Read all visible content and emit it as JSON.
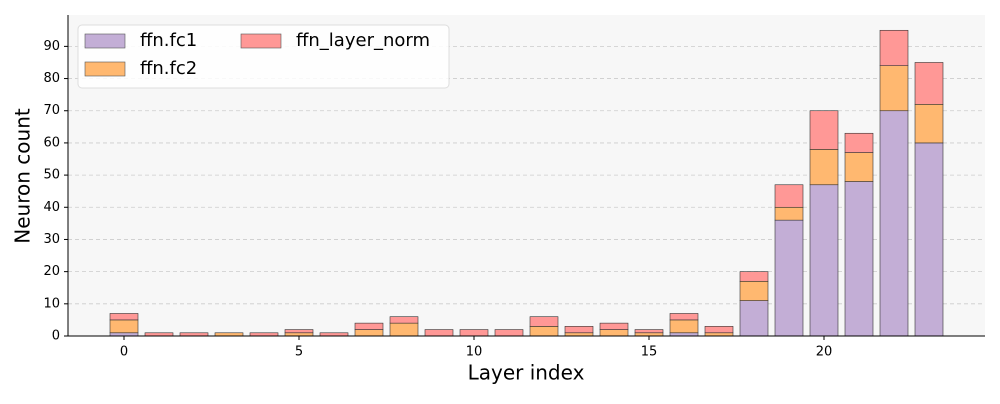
{
  "chart_data": {
    "type": "stacked_bar",
    "x_label": "Layer index",
    "y_label": "Neuron count",
    "x": [
      0,
      1,
      2,
      3,
      4,
      5,
      6,
      7,
      8,
      9,
      10,
      11,
      12,
      13,
      14,
      15,
      16,
      17,
      18,
      19,
      20,
      21,
      22,
      23
    ],
    "series": [
      {
        "name": "ffn.fc1",
        "color": "#c3aed6",
        "values": [
          1,
          0,
          0,
          0,
          0,
          0,
          0,
          0,
          0,
          0,
          0,
          0,
          0,
          0,
          0,
          0,
          1,
          0,
          11,
          36,
          47,
          48,
          70,
          60
        ]
      },
      {
        "name": "ffn.fc2",
        "color": "#ffb870",
        "values": [
          4,
          0,
          0,
          1,
          0,
          1,
          0,
          2,
          4,
          0,
          0,
          0,
          3,
          1,
          2,
          1,
          4,
          1,
          6,
          4,
          11,
          9,
          14,
          12
        ]
      },
      {
        "name": "ffn_layer_norm",
        "color": "#ff9896",
        "values": [
          2,
          1,
          1,
          0,
          1,
          1,
          1,
          2,
          2,
          2,
          2,
          2,
          3,
          2,
          2,
          1,
          2,
          2,
          3,
          7,
          12,
          6,
          11,
          13
        ]
      }
    ],
    "xlim": [
      -1.6,
      24.6
    ],
    "xticks": [
      0,
      5,
      10,
      15,
      20
    ],
    "ylim": [
      0,
      99.75
    ],
    "yticks": [
      0,
      10,
      20,
      30,
      40,
      50,
      60,
      70,
      80,
      90
    ],
    "grid": true,
    "legend": "upper left"
  }
}
